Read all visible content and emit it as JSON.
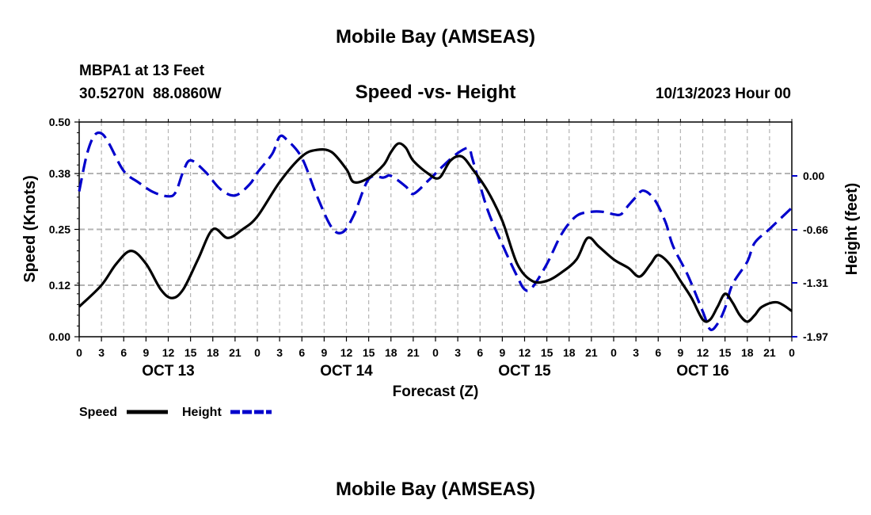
{
  "page": {
    "title": "Mobile Bay (AMSEAS)",
    "station_line": "MBPA1 at 13 Feet",
    "coords_line": "30.5270N  88.0860W",
    "datetime": "10/13/2023 Hour 00",
    "bottom_title": "Mobile Bay (AMSEAS)"
  },
  "chart_data": {
    "type": "line",
    "title": "Speed -vs- Height",
    "xlabel": "Forecast (Z)",
    "ylabel_left": "Speed (Knots)",
    "ylabel_right": "Height (feet)",
    "x_unit": "hours from 10/13/2023 00Z",
    "xlim": [
      0,
      96
    ],
    "x_tick_labels": [
      "0",
      "3",
      "6",
      "9",
      "12",
      "15",
      "18",
      "21",
      "0",
      "3",
      "6",
      "9",
      "12",
      "15",
      "18",
      "21",
      "0",
      "3",
      "6",
      "9",
      "12",
      "15",
      "18",
      "21",
      "0",
      "3",
      "6",
      "9",
      "12",
      "15",
      "18",
      "21",
      "0"
    ],
    "day_labels": [
      {
        "label": "OCT 13",
        "hour": 12
      },
      {
        "label": "OCT 14",
        "hour": 36
      },
      {
        "label": "OCT 15",
        "hour": 60
      },
      {
        "label": "OCT 16",
        "hour": 84
      }
    ],
    "left_axis": {
      "ylim": [
        0,
        0.5
      ],
      "ticks": [
        "0.00",
        "0.12",
        "0.25",
        "0.38",
        "0.50"
      ]
    },
    "right_axis": {
      "ylim": [
        -1.97,
        0.66
      ],
      "ticks": [
        "-1.97",
        "-1.31",
        "-0.66",
        "0.00"
      ]
    },
    "grid": true,
    "legend_position": "bottom-left",
    "series": [
      {
        "name": "Speed",
        "axis": "left",
        "color": "#000000",
        "dash": "solid",
        "points": [
          [
            0,
            0.07
          ],
          [
            3,
            0.12
          ],
          [
            5,
            0.17
          ],
          [
            7,
            0.2
          ],
          [
            9,
            0.17
          ],
          [
            11,
            0.11
          ],
          [
            12.5,
            0.09
          ],
          [
            14,
            0.11
          ],
          [
            16,
            0.18
          ],
          [
            18,
            0.25
          ],
          [
            20,
            0.23
          ],
          [
            22,
            0.25
          ],
          [
            24,
            0.28
          ],
          [
            27,
            0.36
          ],
          [
            30,
            0.42
          ],
          [
            32,
            0.435
          ],
          [
            34,
            0.43
          ],
          [
            36,
            0.39
          ],
          [
            37,
            0.36
          ],
          [
            39,
            0.37
          ],
          [
            41,
            0.4
          ],
          [
            42,
            0.43
          ],
          [
            43,
            0.45
          ],
          [
            44,
            0.44
          ],
          [
            45,
            0.41
          ],
          [
            47,
            0.38
          ],
          [
            48.5,
            0.37
          ],
          [
            50,
            0.41
          ],
          [
            51.5,
            0.42
          ],
          [
            53,
            0.39
          ],
          [
            55,
            0.34
          ],
          [
            57,
            0.27
          ],
          [
            59,
            0.17
          ],
          [
            61,
            0.13
          ],
          [
            63,
            0.13
          ],
          [
            65,
            0.15
          ],
          [
            67,
            0.18
          ],
          [
            68.5,
            0.23
          ],
          [
            70,
            0.21
          ],
          [
            72,
            0.18
          ],
          [
            74,
            0.16
          ],
          [
            75.5,
            0.14
          ],
          [
            77,
            0.17
          ],
          [
            78,
            0.19
          ],
          [
            79.5,
            0.17
          ],
          [
            81,
            0.13
          ],
          [
            82.5,
            0.09
          ],
          [
            84,
            0.04
          ],
          [
            85,
            0.04
          ],
          [
            86,
            0.07
          ],
          [
            87,
            0.1
          ],
          [
            88,
            0.08
          ],
          [
            89,
            0.05
          ],
          [
            90,
            0.035
          ],
          [
            91,
            0.05
          ],
          [
            92,
            0.07
          ],
          [
            94,
            0.08
          ],
          [
            96,
            0.06
          ]
        ]
      },
      {
        "name": "Height",
        "axis": "right",
        "color": "#0000cc",
        "dash": "dashed",
        "points": [
          [
            0,
            -0.19
          ],
          [
            1,
            0.25
          ],
          [
            2,
            0.49
          ],
          [
            3,
            0.52
          ],
          [
            4,
            0.4
          ],
          [
            6,
            0.06
          ],
          [
            8,
            -0.08
          ],
          [
            10,
            -0.2
          ],
          [
            12,
            -0.25
          ],
          [
            13,
            -0.2
          ],
          [
            14,
            0.05
          ],
          [
            15,
            0.19
          ],
          [
            17,
            0.05
          ],
          [
            19,
            -0.16
          ],
          [
            21,
            -0.24
          ],
          [
            23,
            -0.1
          ],
          [
            24,
            0.04
          ],
          [
            26,
            0.27
          ],
          [
            27,
            0.48
          ],
          [
            28,
            0.44
          ],
          [
            30,
            0.22
          ],
          [
            32,
            -0.24
          ],
          [
            34,
            -0.63
          ],
          [
            35.5,
            -0.69
          ],
          [
            37,
            -0.48
          ],
          [
            39,
            -0.04
          ],
          [
            41,
            -0.02
          ],
          [
            42,
            0.0
          ],
          [
            44,
            -0.13
          ],
          [
            45,
            -0.22
          ],
          [
            47,
            -0.06
          ],
          [
            49,
            0.12
          ],
          [
            51,
            0.28
          ],
          [
            52.5,
            0.34
          ],
          [
            53,
            0.2
          ],
          [
            55,
            -0.41
          ],
          [
            57,
            -0.84
          ],
          [
            59,
            -1.23
          ],
          [
            60,
            -1.39
          ],
          [
            61,
            -1.37
          ],
          [
            63,
            -1.08
          ],
          [
            65,
            -0.71
          ],
          [
            67,
            -0.49
          ],
          [
            69,
            -0.44
          ],
          [
            70.5,
            -0.44
          ],
          [
            72,
            -0.47
          ],
          [
            73,
            -0.47
          ],
          [
            74,
            -0.36
          ],
          [
            75,
            -0.26
          ],
          [
            76,
            -0.18
          ],
          [
            77.5,
            -0.29
          ],
          [
            79,
            -0.57
          ],
          [
            80,
            -0.86
          ],
          [
            82,
            -1.22
          ],
          [
            84,
            -1.66
          ],
          [
            85,
            -1.88
          ],
          [
            86,
            -1.81
          ],
          [
            87,
            -1.62
          ],
          [
            88,
            -1.33
          ],
          [
            90,
            -1.05
          ],
          [
            91,
            -0.82
          ],
          [
            93,
            -0.65
          ],
          [
            96,
            -0.39
          ]
        ]
      }
    ]
  }
}
